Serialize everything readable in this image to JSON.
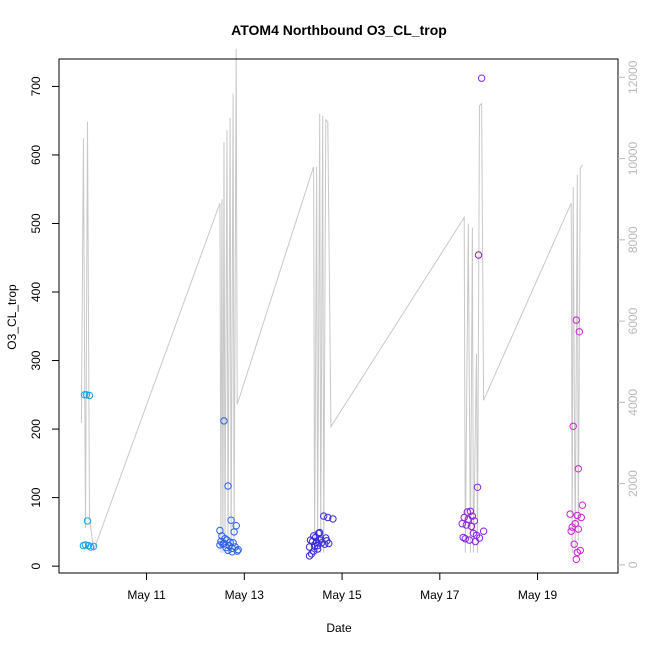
{
  "chart_data": {
    "type": "scatter",
    "title": "ATOM4 Northbound O3_CL_trop",
    "xlabel": "Date",
    "ylabel": "O3_CL_trop",
    "x_ticks": [
      {
        "date": "2018-05-11",
        "label": "May 11"
      },
      {
        "date": "2018-05-13",
        "label": "May 13"
      },
      {
        "date": "2018-05-15",
        "label": "May 15"
      },
      {
        "date": "2018-05-17",
        "label": "May 17"
      },
      {
        "date": "2018-05-19",
        "label": "May 19"
      }
    ],
    "xlim": [
      "2018-05-09T05:00",
      "2018-05-20T15:30"
    ],
    "ylim": [
      -10,
      740
    ],
    "y_ticks": [
      0,
      100,
      200,
      300,
      400,
      500,
      600,
      700
    ],
    "y2lim": [
      -200,
      12450
    ],
    "y2_ticks": [
      0,
      2000,
      4000,
      6000,
      8000,
      10000,
      12000
    ],
    "grid": false,
    "series": [
      {
        "type": "scatter",
        "color": "#1aa0e8",
        "points": [
          [
            "2018-05-09T17:30",
            250
          ],
          [
            "2018-05-09T18:30",
            250
          ],
          [
            "2018-05-09T20:00",
            249
          ],
          [
            "2018-05-09T19:00",
            66
          ],
          [
            "2018-05-09T17:00",
            30
          ],
          [
            "2018-05-09T18:00",
            31
          ],
          [
            "2018-05-09T19:30",
            30
          ],
          [
            "2018-05-09T22:00",
            29
          ],
          [
            "2018-05-09T20:30",
            28
          ]
        ]
      },
      {
        "type": "scatter",
        "color": "#2a5ff0",
        "points": [
          [
            "2018-05-12T14:00",
            212
          ],
          [
            "2018-05-12T16:00",
            117
          ],
          [
            "2018-05-12T17:30",
            67
          ],
          [
            "2018-05-12T12:00",
            52
          ],
          [
            "2018-05-12T20:00",
            59
          ],
          [
            "2018-05-12T19:00",
            50
          ],
          [
            "2018-05-12T13:00",
            44
          ],
          [
            "2018-05-12T14:30",
            40
          ],
          [
            "2018-05-12T15:30",
            38
          ],
          [
            "2018-05-12T12:30",
            36
          ],
          [
            "2018-05-12T17:00",
            35
          ],
          [
            "2018-05-12T18:30",
            34
          ],
          [
            "2018-05-12T13:30",
            32
          ],
          [
            "2018-05-12T16:30",
            30
          ],
          [
            "2018-05-12T19:30",
            28
          ],
          [
            "2018-05-12T15:00",
            27
          ],
          [
            "2018-05-12T18:00",
            26
          ],
          [
            "2018-05-12T21:00",
            24
          ],
          [
            "2018-05-12T20:30",
            22
          ],
          [
            "2018-05-12T16:00",
            23
          ],
          [
            "2018-05-12T18:00",
            21
          ],
          [
            "2018-05-12T12:00",
            31
          ],
          [
            "2018-05-12T14:00",
            33
          ]
        ]
      },
      {
        "type": "scatter",
        "color": "#3a2ad8",
        "points": [
          [
            "2018-05-14T15:00",
            73
          ],
          [
            "2018-05-14T17:00",
            71
          ],
          [
            "2018-05-14T19:30",
            69
          ],
          [
            "2018-05-14T13:00",
            49
          ],
          [
            "2018-05-14T12:30",
            48
          ],
          [
            "2018-05-14T10:00",
            44
          ],
          [
            "2018-05-14T11:00",
            42
          ],
          [
            "2018-05-14T13:30",
            40
          ],
          [
            "2018-05-14T16:00",
            41
          ],
          [
            "2018-05-14T08:30",
            38
          ],
          [
            "2018-05-14T09:30",
            36
          ],
          [
            "2018-05-14T11:30",
            35
          ],
          [
            "2018-05-14T14:00",
            34
          ],
          [
            "2018-05-14T17:30",
            33
          ],
          [
            "2018-05-14T15:30",
            32
          ],
          [
            "2018-05-14T12:00",
            30
          ],
          [
            "2018-05-14T10:30",
            29
          ],
          [
            "2018-05-14T08:00",
            28
          ],
          [
            "2018-05-14T12:00",
            25
          ],
          [
            "2018-05-14T10:00",
            22
          ],
          [
            "2018-05-14T09:00",
            18
          ],
          [
            "2018-05-14T08:00",
            15
          ],
          [
            "2018-05-14T13:00",
            38
          ],
          [
            "2018-05-14T16:30",
            37
          ]
        ]
      },
      {
        "type": "scatter",
        "color": "#8a22e0",
        "points": [
          [
            "2018-05-17T20:30",
            712
          ],
          [
            "2018-05-17T19:00",
            454
          ],
          [
            "2018-05-17T18:30",
            115
          ],
          [
            "2018-05-17T13:30",
            79
          ],
          [
            "2018-05-17T15:00",
            80
          ],
          [
            "2018-05-17T16:00",
            73
          ],
          [
            "2018-05-17T12:00",
            71
          ],
          [
            "2018-05-17T14:00",
            68
          ],
          [
            "2018-05-17T17:00",
            66
          ],
          [
            "2018-05-17T11:00",
            62
          ],
          [
            "2018-05-17T13:00",
            60
          ],
          [
            "2018-05-17T15:30",
            58
          ],
          [
            "2018-05-17T21:30",
            51
          ],
          [
            "2018-05-17T16:30",
            48
          ],
          [
            "2018-05-17T18:00",
            45
          ],
          [
            "2018-05-17T12:30",
            40
          ],
          [
            "2018-05-17T14:30",
            38
          ],
          [
            "2018-05-17T17:30",
            36
          ],
          [
            "2018-05-17T11:30",
            42
          ],
          [
            "2018-05-17T19:30",
            41
          ]
        ]
      },
      {
        "type": "scatter",
        "color": "#d21ed6",
        "points": [
          [
            "2018-05-19T19:00",
            359
          ],
          [
            "2018-05-19T20:30",
            342
          ],
          [
            "2018-05-19T17:30",
            204
          ],
          [
            "2018-05-19T20:00",
            142
          ],
          [
            "2018-05-19T22:00",
            89
          ],
          [
            "2018-05-19T16:00",
            76
          ],
          [
            "2018-05-19T19:30",
            74
          ],
          [
            "2018-05-19T21:30",
            71
          ],
          [
            "2018-05-19T18:30",
            62
          ],
          [
            "2018-05-19T17:00",
            57
          ],
          [
            "2018-05-19T20:00",
            54
          ],
          [
            "2018-05-19T16:30",
            51
          ],
          [
            "2018-05-19T18:00",
            32
          ],
          [
            "2018-05-19T21:00",
            23
          ],
          [
            "2018-05-19T19:30",
            20
          ],
          [
            "2018-05-19T19:00",
            10
          ]
        ]
      },
      {
        "type": "line",
        "axis": "right",
        "color": "#c8c8c8",
        "points": [
          [
            "2018-05-09T16:00",
            3500
          ],
          [
            "2018-05-09T17:00",
            10500
          ],
          [
            "2018-05-09T18:00",
            900
          ],
          [
            "2018-05-09T19:00",
            10900
          ],
          [
            "2018-05-09T20:00",
            1200
          ],
          [
            "2018-05-09T22:00",
            350
          ],
          [
            "2018-05-12T12:00",
            8900
          ],
          [
            "2018-05-12T12:30",
            300
          ],
          [
            "2018-05-12T13:00",
            9000
          ],
          [
            "2018-05-12T13:30",
            300
          ],
          [
            "2018-05-12T14:00",
            10400
          ],
          [
            "2018-05-12T14:30",
            500
          ],
          [
            "2018-05-12T15:30",
            10700
          ],
          [
            "2018-05-12T16:00",
            400
          ],
          [
            "2018-05-12T17:00",
            11000
          ],
          [
            "2018-05-12T17:30",
            300
          ],
          [
            "2018-05-12T18:30",
            11600
          ],
          [
            "2018-05-12T19:00",
            600
          ],
          [
            "2018-05-12T20:00",
            12700
          ],
          [
            "2018-05-12T20:30",
            3950
          ],
          [
            "2018-05-14T10:00",
            9800
          ],
          [
            "2018-05-14T10:30",
            300
          ],
          [
            "2018-05-14T11:30",
            9800
          ],
          [
            "2018-05-14T12:00",
            300
          ],
          [
            "2018-05-14T13:00",
            11100
          ],
          [
            "2018-05-14T13:30",
            300
          ],
          [
            "2018-05-14T14:30",
            11050
          ],
          [
            "2018-05-14T15:00",
            300
          ],
          [
            "2018-05-14T16:00",
            10950
          ],
          [
            "2018-05-14T17:00",
            10900
          ],
          [
            "2018-05-14T18:30",
            3400
          ],
          [
            "2018-05-17T12:00",
            8550
          ],
          [
            "2018-05-17T12:30",
            300
          ],
          [
            "2018-05-17T14:00",
            8400
          ],
          [
            "2018-05-17T15:00",
            300
          ],
          [
            "2018-05-17T16:00",
            8300
          ],
          [
            "2018-05-17T16:30",
            300
          ],
          [
            "2018-05-17T18:00",
            5200
          ],
          [
            "2018-05-17T18:30",
            300
          ],
          [
            "2018-05-17T19:30",
            11300
          ],
          [
            "2018-05-17T20:30",
            11350
          ],
          [
            "2018-05-17T21:30",
            4050
          ],
          [
            "2018-05-19T16:30",
            8900
          ],
          [
            "2018-05-19T17:00",
            300
          ],
          [
            "2018-05-19T17:30",
            9300
          ],
          [
            "2018-05-19T18:30",
            300
          ],
          [
            "2018-05-19T19:30",
            9600
          ],
          [
            "2018-05-19T20:00",
            600
          ],
          [
            "2018-05-19T21:00",
            9750
          ],
          [
            "2018-05-19T22:00",
            9850
          ]
        ]
      }
    ]
  }
}
